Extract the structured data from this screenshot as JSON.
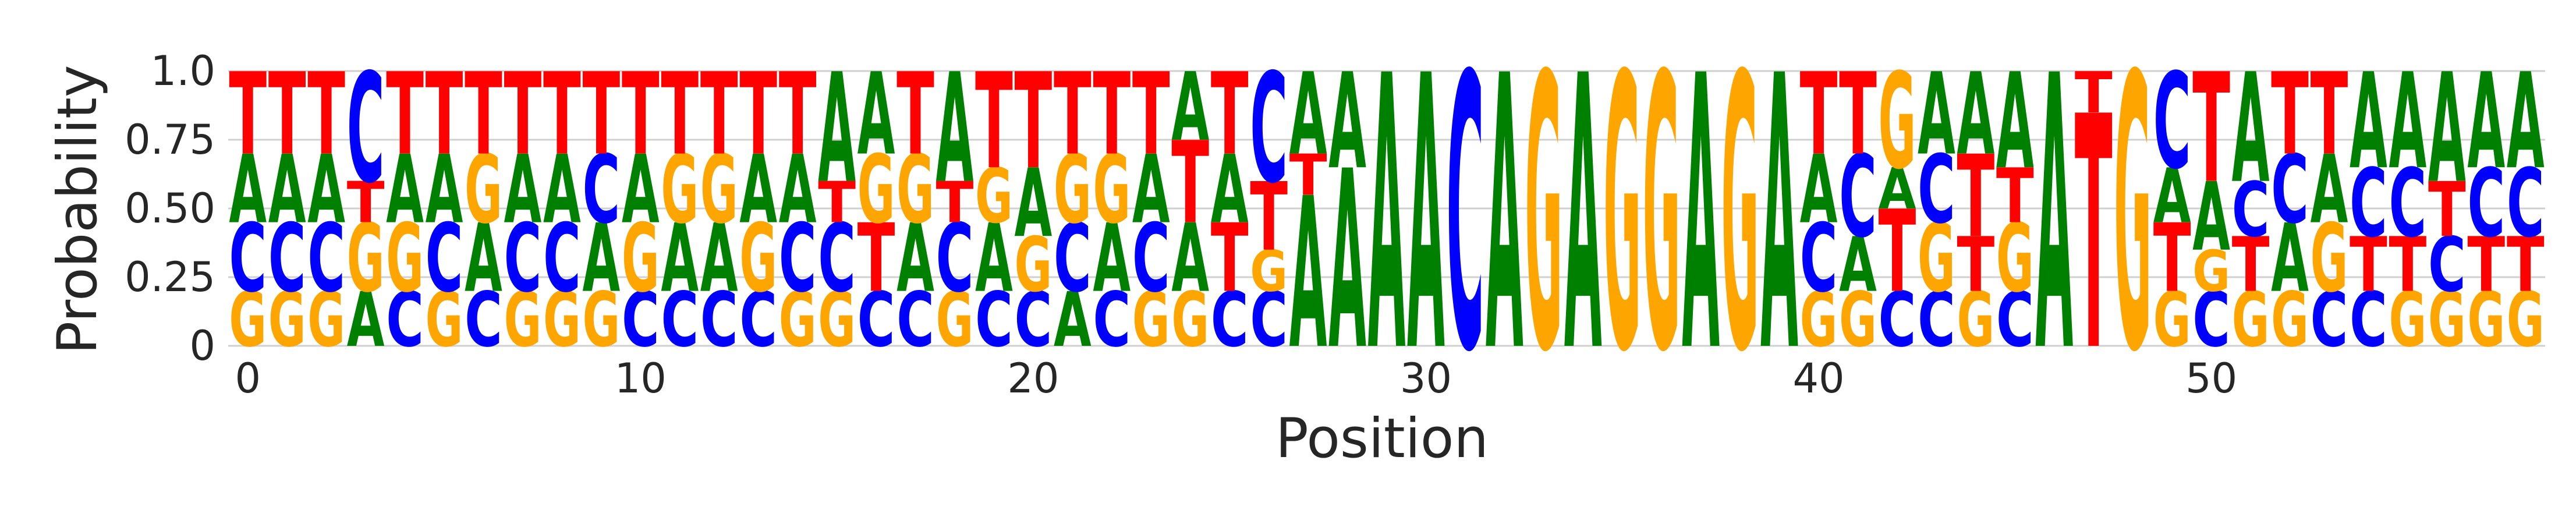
{
  "chart_data": {
    "type": "sequence-logo",
    "title": "",
    "xlabel": "Position",
    "ylabel": "Probability",
    "ylim": [
      0,
      1
    ],
    "yticks": [
      0,
      0.25,
      0.5,
      0.75,
      1.0
    ],
    "ytick_labels": [
      "0",
      "0.25",
      "0.50",
      "0.75",
      "1.0"
    ],
    "xticks": [
      0,
      10,
      20,
      30,
      40,
      50
    ],
    "xtick_labels": [
      "0",
      "10",
      "20",
      "30",
      "40",
      "50"
    ],
    "xlim": [
      -0.5,
      58.5
    ],
    "grid": "horizontal",
    "letter_colors": {
      "A": "#008000",
      "C": "#0000ff",
      "G": "#ffa500",
      "T": "#ff0000"
    },
    "positions": [
      {
        "G": 0.2,
        "C": 0.25,
        "A": 0.25,
        "T": 0.3
      },
      {
        "G": 0.2,
        "C": 0.25,
        "A": 0.25,
        "T": 0.3
      },
      {
        "G": 0.2,
        "C": 0.25,
        "A": 0.25,
        "T": 0.3
      },
      {
        "A": 0.2,
        "G": 0.25,
        "T": 0.15,
        "C": 0.4
      },
      {
        "C": 0.2,
        "G": 0.25,
        "A": 0.25,
        "T": 0.3
      },
      {
        "G": 0.2,
        "C": 0.25,
        "A": 0.25,
        "T": 0.3
      },
      {
        "C": 0.2,
        "A": 0.25,
        "G": 0.25,
        "T": 0.3
      },
      {
        "G": 0.2,
        "C": 0.25,
        "A": 0.25,
        "T": 0.3
      },
      {
        "G": 0.2,
        "C": 0.25,
        "A": 0.25,
        "T": 0.3
      },
      {
        "G": 0.2,
        "A": 0.25,
        "C": 0.25,
        "T": 0.3
      },
      {
        "C": 0.2,
        "G": 0.25,
        "A": 0.25,
        "T": 0.3
      },
      {
        "C": 0.2,
        "A": 0.25,
        "G": 0.25,
        "T": 0.3
      },
      {
        "C": 0.2,
        "A": 0.25,
        "G": 0.25,
        "T": 0.3
      },
      {
        "C": 0.2,
        "C_": 0.0,
        "G": 0.25,
        "A": 0.25,
        "T": 0.3
      },
      {
        "G": 0.2,
        "C": 0.25,
        "A": 0.25,
        "T": 0.3
      },
      {
        "G": 0.2,
        "C": 0.25,
        "T": 0.15,
        "A": 0.4
      },
      {
        "C": 0.2,
        "T": 0.25,
        "G": 0.25,
        "A": 0.3
      },
      {
        "C": 0.2,
        "A": 0.25,
        "G": 0.25,
        "T": 0.3
      },
      {
        "G": 0.2,
        "C": 0.25,
        "T": 0.15,
        "A": 0.4
      },
      {
        "C": 0.2,
        "A": 0.25,
        "G": 0.2,
        "T": 0.35
      },
      {
        "C": 0.2,
        "G": 0.2,
        "A": 0.25,
        "T": 0.35
      },
      {
        "A": 0.2,
        "C": 0.25,
        "G": 0.25,
        "T": 0.3
      },
      {
        "C": 0.2,
        "A": 0.25,
        "G": 0.25,
        "T": 0.3
      },
      {
        "G": 0.2,
        "C": 0.25,
        "A": 0.25,
        "T": 0.3
      },
      {
        "G": 0.2,
        "A": 0.25,
        "G2": 0.0,
        "T": 0.3,
        "A2": 0.25
      },
      {
        "C": 0.2,
        "C2": 0.0,
        "T": 0.25,
        "A": 0.25,
        "T2": 0.3
      },
      {
        "C": 0.2,
        "G": 0.15,
        "T": 0.25,
        "C3": 0.4
      },
      {
        "A": 0.55,
        "T": 0.15,
        "A2": 0.3
      },
      {
        "A": 0.65,
        "A2": 0.35
      },
      {
        "A": 1.0
      },
      {
        "A": 1.0
      },
      {
        "C": 1.0
      },
      {
        "A": 1.0
      },
      {
        "G": 1.0
      },
      {
        "A": 1.0
      },
      {
        "G": 1.0
      },
      {
        "G": 1.0
      },
      {
        "A": 1.0
      },
      {
        "G": 1.0
      },
      {
        "A": 1.0
      },
      {
        "G": 0.2,
        "C": 0.25,
        "A": 0.25,
        "T": 0.3
      },
      {
        "G": 0.2,
        "A": 0.2,
        "C": 0.3,
        "T": 0.3
      },
      {
        "C": 0.2,
        "T": 0.3,
        "A": 0.15,
        "G": 0.35
      },
      {
        "C": 0.2,
        "G": 0.25,
        "C2": 0.25,
        "A": 0.3
      },
      {
        "G": 0.2,
        "T": 0.2,
        "T2": 0.3,
        "A": 0.3
      },
      {
        "C": 0.2,
        "G": 0.25,
        "T": 0.2,
        "A": 0.35
      },
      {
        "A": 1.0
      },
      {
        "T": 0.85,
        "T2": 0.15
      },
      {
        "G": 1.0
      },
      {
        "G": 0.2,
        "T": 0.25,
        "A": 0.2,
        "C": 0.35
      },
      {
        "C": 0.2,
        "G": 0.15,
        "A": 0.25,
        "T": 0.4
      },
      {
        "G": 0.2,
        "T": 0.2,
        "C": 0.2,
        "A": 0.4
      },
      {
        "G": 0.2,
        "A": 0.25,
        "C": 0.25,
        "T": 0.3
      },
      {
        "C": 0.2,
        "G": 0.25,
        "A": 0.25,
        "T": 0.3
      },
      {
        "C": 0.2,
        "T": 0.2,
        "C2": 0.25,
        "A": 0.35
      },
      {
        "G": 0.2,
        "T": 0.2,
        "C": 0.25,
        "A": 0.35
      },
      {
        "G": 0.2,
        "C": 0.2,
        "T": 0.2,
        "A": 0.4
      },
      {
        "G": 0.2,
        "T": 0.2,
        "C": 0.25,
        "A": 0.35
      },
      {
        "G": 0.2,
        "T": 0.2,
        "C": 0.25,
        "A": 0.35
      }
    ]
  }
}
